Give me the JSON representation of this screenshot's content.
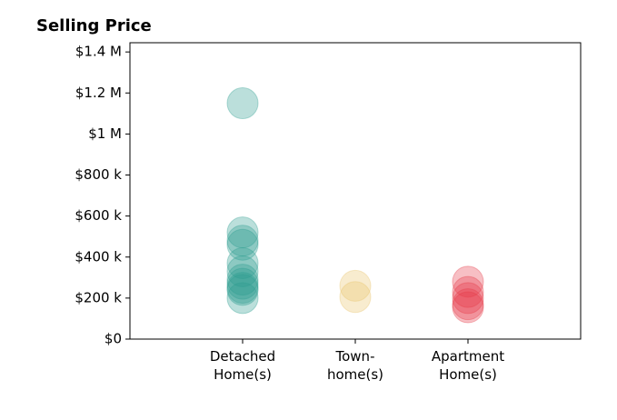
{
  "chart_data": {
    "type": "scatter",
    "title": "Selling Price",
    "categories": [
      "Detached\nHome(s)",
      "Town-\nhome(s)",
      "Apartment\nHome(s)"
    ],
    "colors": [
      "#2a9d8f",
      "#e9c46a",
      "#e63946"
    ],
    "values": [
      [
        1150000,
        520000,
        480000,
        460000,
        370000,
        330000,
        290000,
        270000,
        250000,
        240000,
        200000
      ],
      [
        260000,
        205000
      ],
      [
        280000,
        230000,
        200000,
        170000,
        155000
      ]
    ],
    "ylim": [
      0,
      1445000
    ],
    "yticks": [
      {
        "value": 0,
        "label": "$0"
      },
      {
        "value": 200000,
        "label": "$200 k"
      },
      {
        "value": 400000,
        "label": "$400 k"
      },
      {
        "value": 600000,
        "label": "$600 k"
      },
      {
        "value": 800000,
        "label": "$800 k"
      },
      {
        "value": 1000000,
        "label": "$1 M"
      },
      {
        "value": 1200000,
        "label": "$1.2 M"
      },
      {
        "value": 1400000,
        "label": "$1.4 M"
      }
    ]
  }
}
